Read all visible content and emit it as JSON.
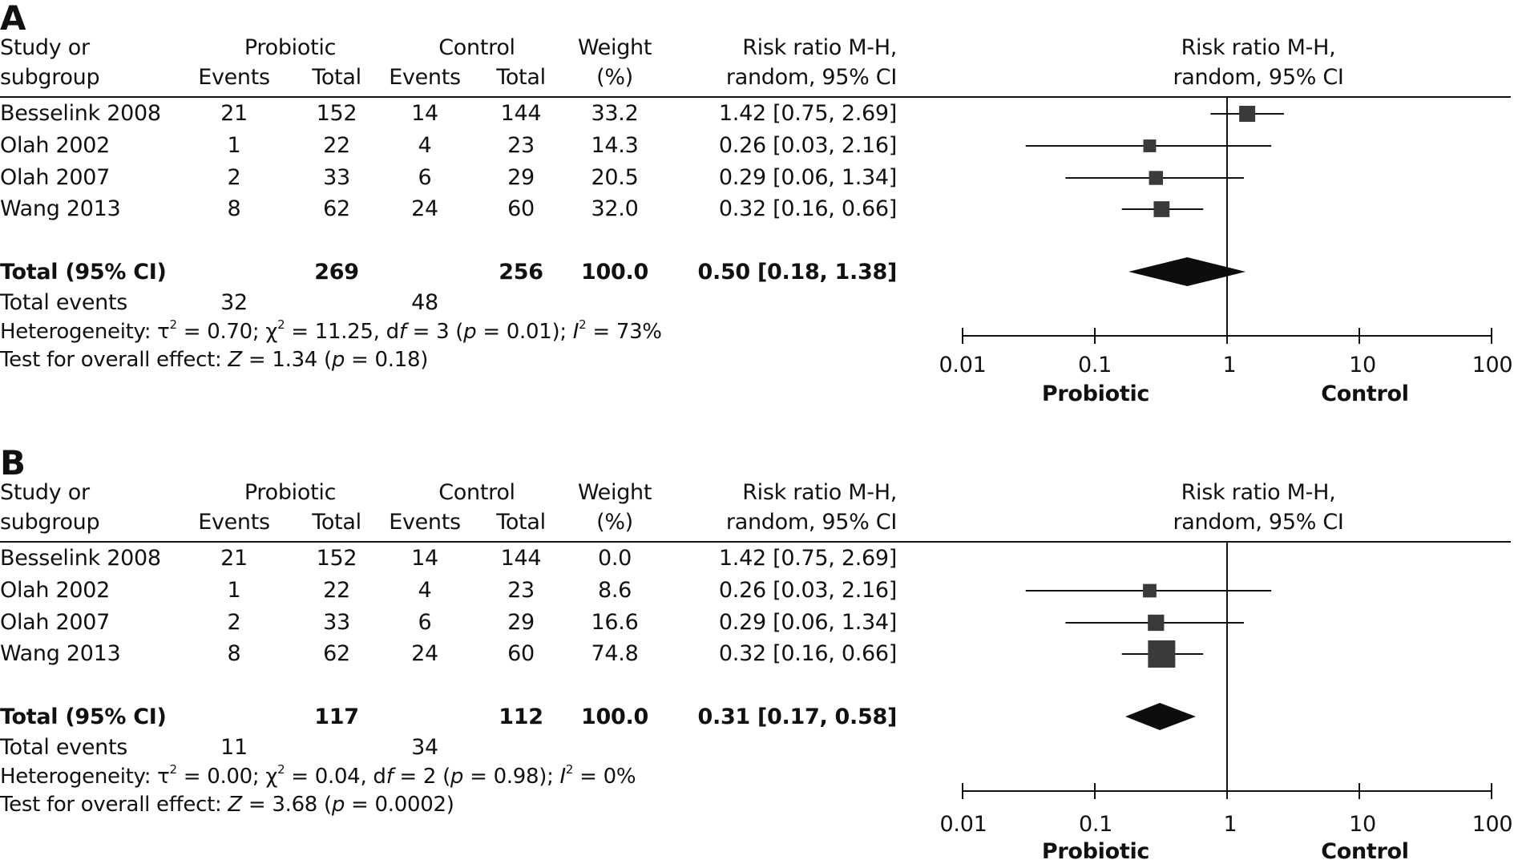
{
  "colors": {
    "square": "#3a3a3a",
    "diamond": "#0d0d0d",
    "line": "#111111",
    "text": "#111111",
    "background": "#ffffff"
  },
  "headers": {
    "study_line1": "Study or",
    "study_line2": "subgroup",
    "probiotic": "Probiotic",
    "control": "Control",
    "events": "Events",
    "total": "Total",
    "weight_line1": "Weight",
    "weight_line2": "(%)",
    "rr_line1": "Risk ratio M-H,",
    "rr_line2": "random, 95% CI",
    "plot_line1": "Risk ratio M-H,",
    "plot_line2": "random, 95% CI"
  },
  "panels": [
    {
      "label": "A",
      "studies": [
        {
          "name": "Besselink 2008",
          "probiotic_events": "21",
          "probiotic_total": "152",
          "control_events": "14",
          "control_total": "144",
          "weight": "33.2",
          "rr_text": "1.42 [0.75, 2.69]",
          "rr": 1.42,
          "lo": 0.75,
          "hi": 2.69,
          "shown": true
        },
        {
          "name": "Olah 2002",
          "probiotic_events": "1",
          "probiotic_total": "22",
          "control_events": "4",
          "control_total": "23",
          "weight": "14.3",
          "rr_text": "0.26 [0.03, 2.16]",
          "rr": 0.26,
          "lo": 0.03,
          "hi": 2.16,
          "shown": true
        },
        {
          "name": "Olah 2007",
          "probiotic_events": "2",
          "probiotic_total": "33",
          "control_events": "6",
          "control_total": "29",
          "weight": "20.5",
          "rr_text": "0.29 [0.06, 1.34]",
          "rr": 0.29,
          "lo": 0.06,
          "hi": 1.34,
          "shown": true
        },
        {
          "name": "Wang 2013",
          "probiotic_events": "8",
          "probiotic_total": "62",
          "control_events": "24",
          "control_total": "60",
          "weight": "32.0",
          "rr_text": "0.32 [0.16, 0.66]",
          "rr": 0.32,
          "lo": 0.16,
          "hi": 0.66,
          "shown": true
        }
      ],
      "total": {
        "label": "Total (95% CI)",
        "probiotic_total": "269",
        "control_total": "256",
        "weight": "100.0",
        "rr_text": "0.50 [0.18, 1.38]",
        "rr": 0.5,
        "lo": 0.18,
        "hi": 1.38
      },
      "total_events": {
        "label": "Total events",
        "probiotic": "32",
        "control": "48"
      },
      "heterogeneity": {
        "prefix": "Heterogeneity: τ",
        "tau2": "0.70",
        "chi2": "11.25",
        "df": "3",
        "p": "0.01",
        "i2": "73%"
      },
      "overall_effect": {
        "prefix": "Test for overall effect: ",
        "z": "1.34",
        "p": "0.18"
      }
    },
    {
      "label": "B",
      "studies": [
        {
          "name": "Besselink 2008",
          "probiotic_events": "21",
          "probiotic_total": "152",
          "control_events": "14",
          "control_total": "144",
          "weight": "0.0",
          "rr_text": "1.42 [0.75, 2.69]",
          "rr": 1.42,
          "lo": 0.75,
          "hi": 2.69,
          "shown": false
        },
        {
          "name": "Olah 2002",
          "probiotic_events": "1",
          "probiotic_total": "22",
          "control_events": "4",
          "control_total": "23",
          "weight": "8.6",
          "rr_text": "0.26 [0.03, 2.16]",
          "rr": 0.26,
          "lo": 0.03,
          "hi": 2.16,
          "shown": true
        },
        {
          "name": "Olah 2007",
          "probiotic_events": "2",
          "probiotic_total": "33",
          "control_events": "6",
          "control_total": "29",
          "weight": "16.6",
          "rr_text": "0.29 [0.06, 1.34]",
          "rr": 0.29,
          "lo": 0.06,
          "hi": 1.34,
          "shown": true
        },
        {
          "name": "Wang 2013",
          "probiotic_events": "8",
          "probiotic_total": "62",
          "control_events": "24",
          "control_total": "60",
          "weight": "74.8",
          "rr_text": "0.32 [0.16, 0.66]",
          "rr": 0.32,
          "lo": 0.16,
          "hi": 0.66,
          "shown": true
        }
      ],
      "total": {
        "label": "Total (95% CI)",
        "probiotic_total": "117",
        "control_total": "112",
        "weight": "100.0",
        "rr_text": "0.31 [0.17, 0.58]",
        "rr": 0.31,
        "lo": 0.17,
        "hi": 0.58
      },
      "total_events": {
        "label": "Total events",
        "probiotic": "11",
        "control": "34"
      },
      "heterogeneity": {
        "prefix": "Heterogeneity: τ",
        "tau2": "0.00",
        "chi2": "0.04",
        "df": "2",
        "p": "0.98",
        "i2": "0%"
      },
      "overall_effect": {
        "prefix": "Test for overall effect: ",
        "z": "3.68",
        "p": "0.0002"
      }
    }
  ],
  "axis": {
    "ticks": [
      "0.01",
      "0.1",
      "1",
      "10",
      "100"
    ],
    "left_label": "Probiotic",
    "right_label": "Control"
  },
  "chart_data": [
    {
      "type": "forest",
      "title": "A",
      "scale": "log",
      "xlim": [
        0.01,
        100
      ],
      "xticks": [
        0.01,
        0.1,
        1,
        10,
        100
      ],
      "xlabel_left": "Probiotic",
      "xlabel_right": "Control",
      "null_value": 1,
      "studies": [
        {
          "name": "Besselink 2008",
          "rr": 1.42,
          "ci": [
            0.75,
            2.69
          ],
          "weight": 33.2
        },
        {
          "name": "Olah 2002",
          "rr": 0.26,
          "ci": [
            0.03,
            2.16
          ],
          "weight": 14.3
        },
        {
          "name": "Olah 2007",
          "rr": 0.29,
          "ci": [
            0.06,
            1.34
          ],
          "weight": 20.5
        },
        {
          "name": "Wang 2013",
          "rr": 0.32,
          "ci": [
            0.16,
            0.66
          ],
          "weight": 32.0
        }
      ],
      "pooled": {
        "rr": 0.5,
        "ci": [
          0.18,
          1.38
        ],
        "weight": 100.0
      }
    },
    {
      "type": "forest",
      "title": "B",
      "scale": "log",
      "xlim": [
        0.01,
        100
      ],
      "xticks": [
        0.01,
        0.1,
        1,
        10,
        100
      ],
      "xlabel_left": "Probiotic",
      "xlabel_right": "Control",
      "null_value": 1,
      "studies": [
        {
          "name": "Besselink 2008",
          "rr": 1.42,
          "ci": [
            0.75,
            2.69
          ],
          "weight": 0.0
        },
        {
          "name": "Olah 2002",
          "rr": 0.26,
          "ci": [
            0.03,
            2.16
          ],
          "weight": 8.6
        },
        {
          "name": "Olah 2007",
          "rr": 0.29,
          "ci": [
            0.06,
            1.34
          ],
          "weight": 16.6
        },
        {
          "name": "Wang 2013",
          "rr": 0.32,
          "ci": [
            0.16,
            0.66
          ],
          "weight": 74.8
        }
      ],
      "pooled": {
        "rr": 0.31,
        "ci": [
          0.17,
          0.58
        ],
        "weight": 100.0
      }
    }
  ]
}
